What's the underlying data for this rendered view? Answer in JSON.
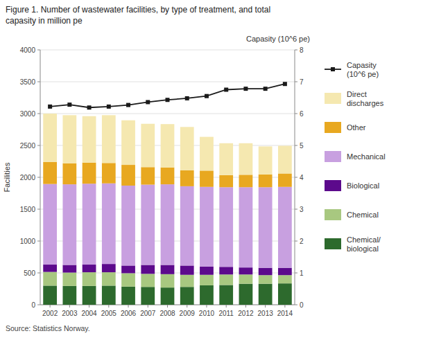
{
  "chart_data": {
    "type": "bar",
    "stacked": true,
    "title": "Figure 1. Number of wastewater facilities, by type of treatment, and total",
    "subtitle": "capasity in million pe",
    "y_label": "Facilities",
    "y2_label": "Capasity (10^6 pe)",
    "source": "Source: Statistics Norway.",
    "categories": [
      "2002",
      "2003",
      "2004",
      "2005",
      "2006",
      "2007",
      "2008",
      "2009",
      "2010",
      "2011",
      "2012",
      "2013",
      "2014"
    ],
    "series": [
      {
        "name": "Chemical/\nbiological",
        "color": "#2d6a2d",
        "values": [
          300,
          295,
          295,
          300,
          285,
          280,
          270,
          280,
          305,
          310,
          330,
          330,
          335
        ]
      },
      {
        "name": "Chemical",
        "color": "#a8c880",
        "values": [
          215,
          210,
          215,
          210,
          210,
          205,
          210,
          190,
          165,
          165,
          145,
          135,
          130
        ]
      },
      {
        "name": "Biological",
        "color": "#5c0a8c",
        "values": [
          115,
          120,
          120,
          130,
          120,
          140,
          145,
          145,
          130,
          120,
          110,
          115,
          115
        ]
      },
      {
        "name": "Mechanical",
        "color": "#c8a0e0",
        "values": [
          1265,
          1265,
          1270,
          1265,
          1255,
          1260,
          1265,
          1245,
          1250,
          1250,
          1260,
          1265,
          1270
        ]
      },
      {
        "name": "Other",
        "color": "#e8a820",
        "values": [
          345,
          330,
          330,
          320,
          325,
          275,
          265,
          250,
          255,
          190,
          195,
          200,
          210
        ]
      },
      {
        "name": "Direct\ndischarges",
        "color": "#f5e8b0",
        "values": [
          760,
          755,
          730,
          750,
          700,
          680,
          680,
          680,
          530,
          500,
          495,
          440,
          435
        ]
      },
      {
        "name": "Capasity\n(10^6 pe)",
        "color": "#1a1a1a",
        "type": "line",
        "marker": "square",
        "axis": "y2",
        "values": [
          6.22,
          6.28,
          6.19,
          6.22,
          6.27,
          6.36,
          6.43,
          6.48,
          6.55,
          6.75,
          6.78,
          6.78,
          6.93
        ]
      }
    ],
    "ylim": [
      0,
      4000
    ],
    "yticks": [
      0,
      500,
      1000,
      1500,
      2000,
      2500,
      3000,
      3500,
      4000
    ],
    "y2lim": [
      0,
      8
    ],
    "y2ticks": [
      0,
      1,
      2,
      3,
      4,
      5,
      6,
      7,
      8
    ],
    "grid": true,
    "legend": "right"
  }
}
